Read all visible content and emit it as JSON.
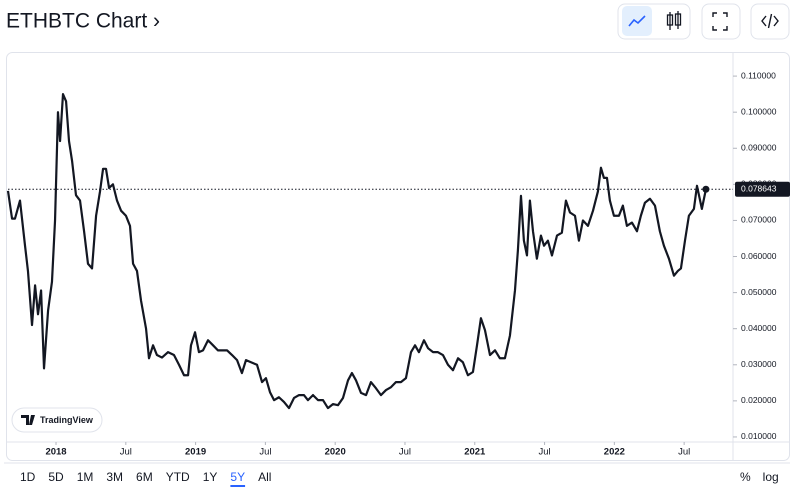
{
  "chart_data": {
    "type": "line",
    "title": "ETHBTC Chart ›",
    "series": [
      {
        "name": "ETHBTC",
        "color": "#131722",
        "x": [
          2017.656,
          2017.685,
          2017.706,
          2017.742,
          2017.778,
          2017.799,
          2017.828,
          2017.85,
          2017.871,
          2017.893,
          2017.914,
          2017.943,
          2017.971,
          2017.993,
          2018.014,
          2018.029,
          2018.05,
          2018.072,
          2018.093,
          2018.115,
          2018.143,
          2018.172,
          2018.201,
          2018.229,
          2018.258,
          2018.287,
          2018.315,
          2018.337,
          2018.358,
          2018.38,
          2018.408,
          2018.437,
          2018.466,
          2018.501,
          2018.53,
          2018.552,
          2018.58,
          2018.609,
          2018.645,
          2018.666,
          2018.695,
          2018.723,
          2018.759,
          2018.802,
          2018.845,
          2018.881,
          2018.917,
          2018.946,
          2018.967,
          2018.996,
          2019.024,
          2019.053,
          2019.089,
          2019.125,
          2019.16,
          2019.189,
          2019.225,
          2019.261,
          2019.297,
          2019.332,
          2019.361,
          2019.397,
          2019.44,
          2019.476,
          2019.504,
          2019.533,
          2019.562,
          2019.597,
          2019.633,
          2019.669,
          2019.705,
          2019.741,
          2019.776,
          2019.805,
          2019.841,
          2019.877,
          2019.913,
          2019.948,
          2019.984,
          2020.02,
          2020.056,
          2020.092,
          2020.12,
          2020.149,
          2020.185,
          2020.221,
          2020.256,
          2020.292,
          2020.328,
          2020.364,
          2020.4,
          2020.435,
          2020.471,
          2020.507,
          2020.543,
          2020.572,
          2020.6,
          2020.636,
          2020.665,
          2020.701,
          2020.736,
          2020.772,
          2020.808,
          2020.844,
          2020.88,
          2020.915,
          2020.951,
          2020.987,
          2021.016,
          2021.044,
          2021.073,
          2021.109,
          2021.145,
          2021.18,
          2021.216,
          2021.252,
          2021.288,
          2021.309,
          2021.331,
          2021.352,
          2021.374,
          2021.395,
          2021.417,
          2021.445,
          2021.474,
          2021.496,
          2021.524,
          2021.553,
          2021.589,
          2021.624,
          2021.653,
          2021.682,
          2021.718,
          2021.746,
          2021.775,
          2021.811,
          2021.847,
          2021.882,
          2021.904,
          2021.925,
          2021.947,
          2021.968,
          2021.997,
          2022.033,
          2022.061,
          2022.09,
          2022.126,
          2022.162,
          2022.19,
          2022.219,
          2022.255,
          2022.291,
          2022.326,
          2022.355,
          2022.391,
          2022.427,
          2022.455,
          2022.477,
          2022.506,
          2022.534,
          2022.57,
          2022.592,
          2022.627,
          2022.656
        ],
        "values": [
          0.0782,
          0.0705,
          0.0705,
          0.0755,
          0.063,
          0.056,
          0.041,
          0.052,
          0.044,
          0.0506,
          0.029,
          0.045,
          0.053,
          0.07,
          0.1,
          0.092,
          0.105,
          0.103,
          0.092,
          0.0865,
          0.077,
          0.0755,
          0.067,
          0.058,
          0.0567,
          0.0713,
          0.078,
          0.0843,
          0.0843,
          0.079,
          0.08,
          0.0755,
          0.0727,
          0.0713,
          0.0685,
          0.058,
          0.056,
          0.0478,
          0.04,
          0.0318,
          0.0354,
          0.0327,
          0.032,
          0.0335,
          0.0327,
          0.03,
          0.0271,
          0.0271,
          0.0354,
          0.039,
          0.0335,
          0.034,
          0.0368,
          0.0354,
          0.034,
          0.034,
          0.034,
          0.0327,
          0.0313,
          0.0277,
          0.0313,
          0.0307,
          0.03,
          0.0252,
          0.0263,
          0.0224,
          0.0202,
          0.021,
          0.0197,
          0.018,
          0.0208,
          0.0216,
          0.0216,
          0.0202,
          0.0216,
          0.0202,
          0.0202,
          0.018,
          0.0191,
          0.0188,
          0.0208,
          0.0257,
          0.0277,
          0.0257,
          0.0222,
          0.0216,
          0.0252,
          0.0235,
          0.0216,
          0.023,
          0.0238,
          0.0252,
          0.0252,
          0.0263,
          0.0335,
          0.0354,
          0.0335,
          0.0368,
          0.0346,
          0.0335,
          0.0335,
          0.0327,
          0.03,
          0.0285,
          0.0318,
          0.0307,
          0.0271,
          0.028,
          0.0354,
          0.0429,
          0.0396,
          0.0327,
          0.034,
          0.0318,
          0.0318,
          0.0381,
          0.0506,
          0.0617,
          0.0768,
          0.0644,
          0.0603,
          0.0755,
          0.067,
          0.0594,
          0.0658,
          0.063,
          0.0644,
          0.0603,
          0.0658,
          0.0666,
          0.0755,
          0.0722,
          0.0713,
          0.0644,
          0.07,
          0.0685,
          0.0727,
          0.078,
          0.0846,
          0.0818,
          0.0818,
          0.0755,
          0.0713,
          0.0713,
          0.0741,
          0.0685,
          0.0694,
          0.067,
          0.0713,
          0.0749,
          0.076,
          0.0741,
          0.067,
          0.063,
          0.0594,
          0.0547,
          0.056,
          0.0567,
          0.0644,
          0.0713,
          0.0732,
          0.0796,
          0.0732,
          0.078643
        ]
      }
    ],
    "xlim": [
      2017.656,
      2022.85
    ],
    "ylim": [
      0.0086,
      0.1164
    ],
    "xticks": [
      2018,
      {
        "value": 2018.5,
        "label": "Jul"
      },
      2019,
      {
        "value": 2019.5,
        "label": "Jul"
      },
      2020,
      {
        "value": 2020.5,
        "label": "Jul"
      },
      2021,
      {
        "value": 2021.5,
        "label": "Jul"
      },
      2022,
      {
        "value": 2022.5,
        "label": "Jul"
      }
    ],
    "yticks": [
      {
        "value": 0.01,
        "label": "0.010000"
      },
      {
        "value": 0.02,
        "label": "0.020000"
      },
      {
        "value": 0.03,
        "label": "0.030000"
      },
      {
        "value": 0.04,
        "label": "0.040000"
      },
      {
        "value": 0.05,
        "label": "0.050000"
      },
      {
        "value": 0.06,
        "label": "0.060000"
      },
      {
        "value": 0.07,
        "label": "0.070000"
      },
      {
        "value": 0.08,
        "label": "0.080000"
      },
      {
        "value": 0.09,
        "label": "0.090000"
      },
      {
        "value": 0.1,
        "label": "0.100000"
      },
      {
        "value": 0.11,
        "label": "0.110000"
      }
    ],
    "grid": false,
    "watermark": "TradingView",
    "ranges": [
      "1D",
      "5D",
      "1M",
      "3M",
      "6M",
      "YTD",
      "1Y",
      "5Y",
      "All"
    ],
    "scale_options": [
      "%",
      "log"
    ]
  }
}
